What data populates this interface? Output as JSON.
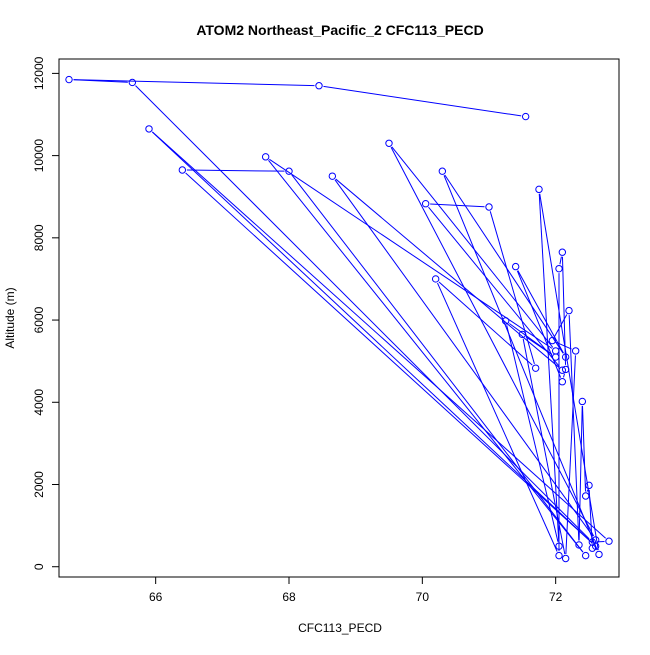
{
  "chart_data": {
    "type": "line",
    "title": "ATOM2 Northeast_Pacific_2 CFC113_PECD",
    "xlabel": "CFC113_PECD",
    "ylabel": "Altitude (m)",
    "xlim": [
      64.55,
      72.95
    ],
    "ylim": [
      -250,
      12350
    ],
    "x_ticks": [
      66,
      68,
      70,
      72
    ],
    "y_ticks": [
      0,
      2000,
      4000,
      6000,
      8000,
      10000,
      12000
    ],
    "series_color": "#0000ff",
    "marker": "open-circle",
    "series": [
      {
        "points": [
          [
            71.55,
            10950
          ],
          [
            68.45,
            11700
          ],
          [
            64.7,
            11850
          ],
          [
            65.65,
            11780
          ],
          [
            72.55,
            600
          ],
          [
            72.8,
            620
          ],
          [
            65.9,
            10650
          ],
          [
            72.6,
            500
          ],
          [
            66.4,
            9650
          ],
          [
            68.0,
            9620
          ],
          [
            72.45,
            270
          ],
          [
            67.65,
            9970
          ],
          [
            72.0,
            5250
          ],
          [
            69.5,
            10300
          ],
          [
            72.6,
            650
          ],
          [
            68.65,
            9500
          ],
          [
            72.1,
            4780
          ],
          [
            70.05,
            8830
          ],
          [
            71.0,
            8750
          ],
          [
            71.7,
            4830
          ],
          [
            70.2,
            7000
          ],
          [
            72.05,
            270
          ],
          [
            72.05,
            7250
          ],
          [
            72.1,
            7650
          ],
          [
            72.15,
            4800
          ],
          [
            72.1,
            4500
          ],
          [
            71.4,
            7300
          ],
          [
            72.15,
            5100
          ],
          [
            70.3,
            9620
          ],
          [
            72.65,
            300
          ],
          [
            71.75,
            9180
          ],
          [
            72.05,
            500
          ],
          [
            71.25,
            5980
          ],
          [
            72.0,
            5100
          ],
          [
            71.5,
            5650
          ],
          [
            72.15,
            200
          ],
          [
            72.3,
            5250
          ],
          [
            71.95,
            5500
          ],
          [
            72.2,
            6230
          ],
          [
            72.35,
            530
          ],
          [
            72.4,
            4020
          ],
          [
            72.45,
            1720
          ],
          [
            72.5,
            1980
          ],
          [
            72.55,
            450
          ]
        ]
      }
    ]
  }
}
